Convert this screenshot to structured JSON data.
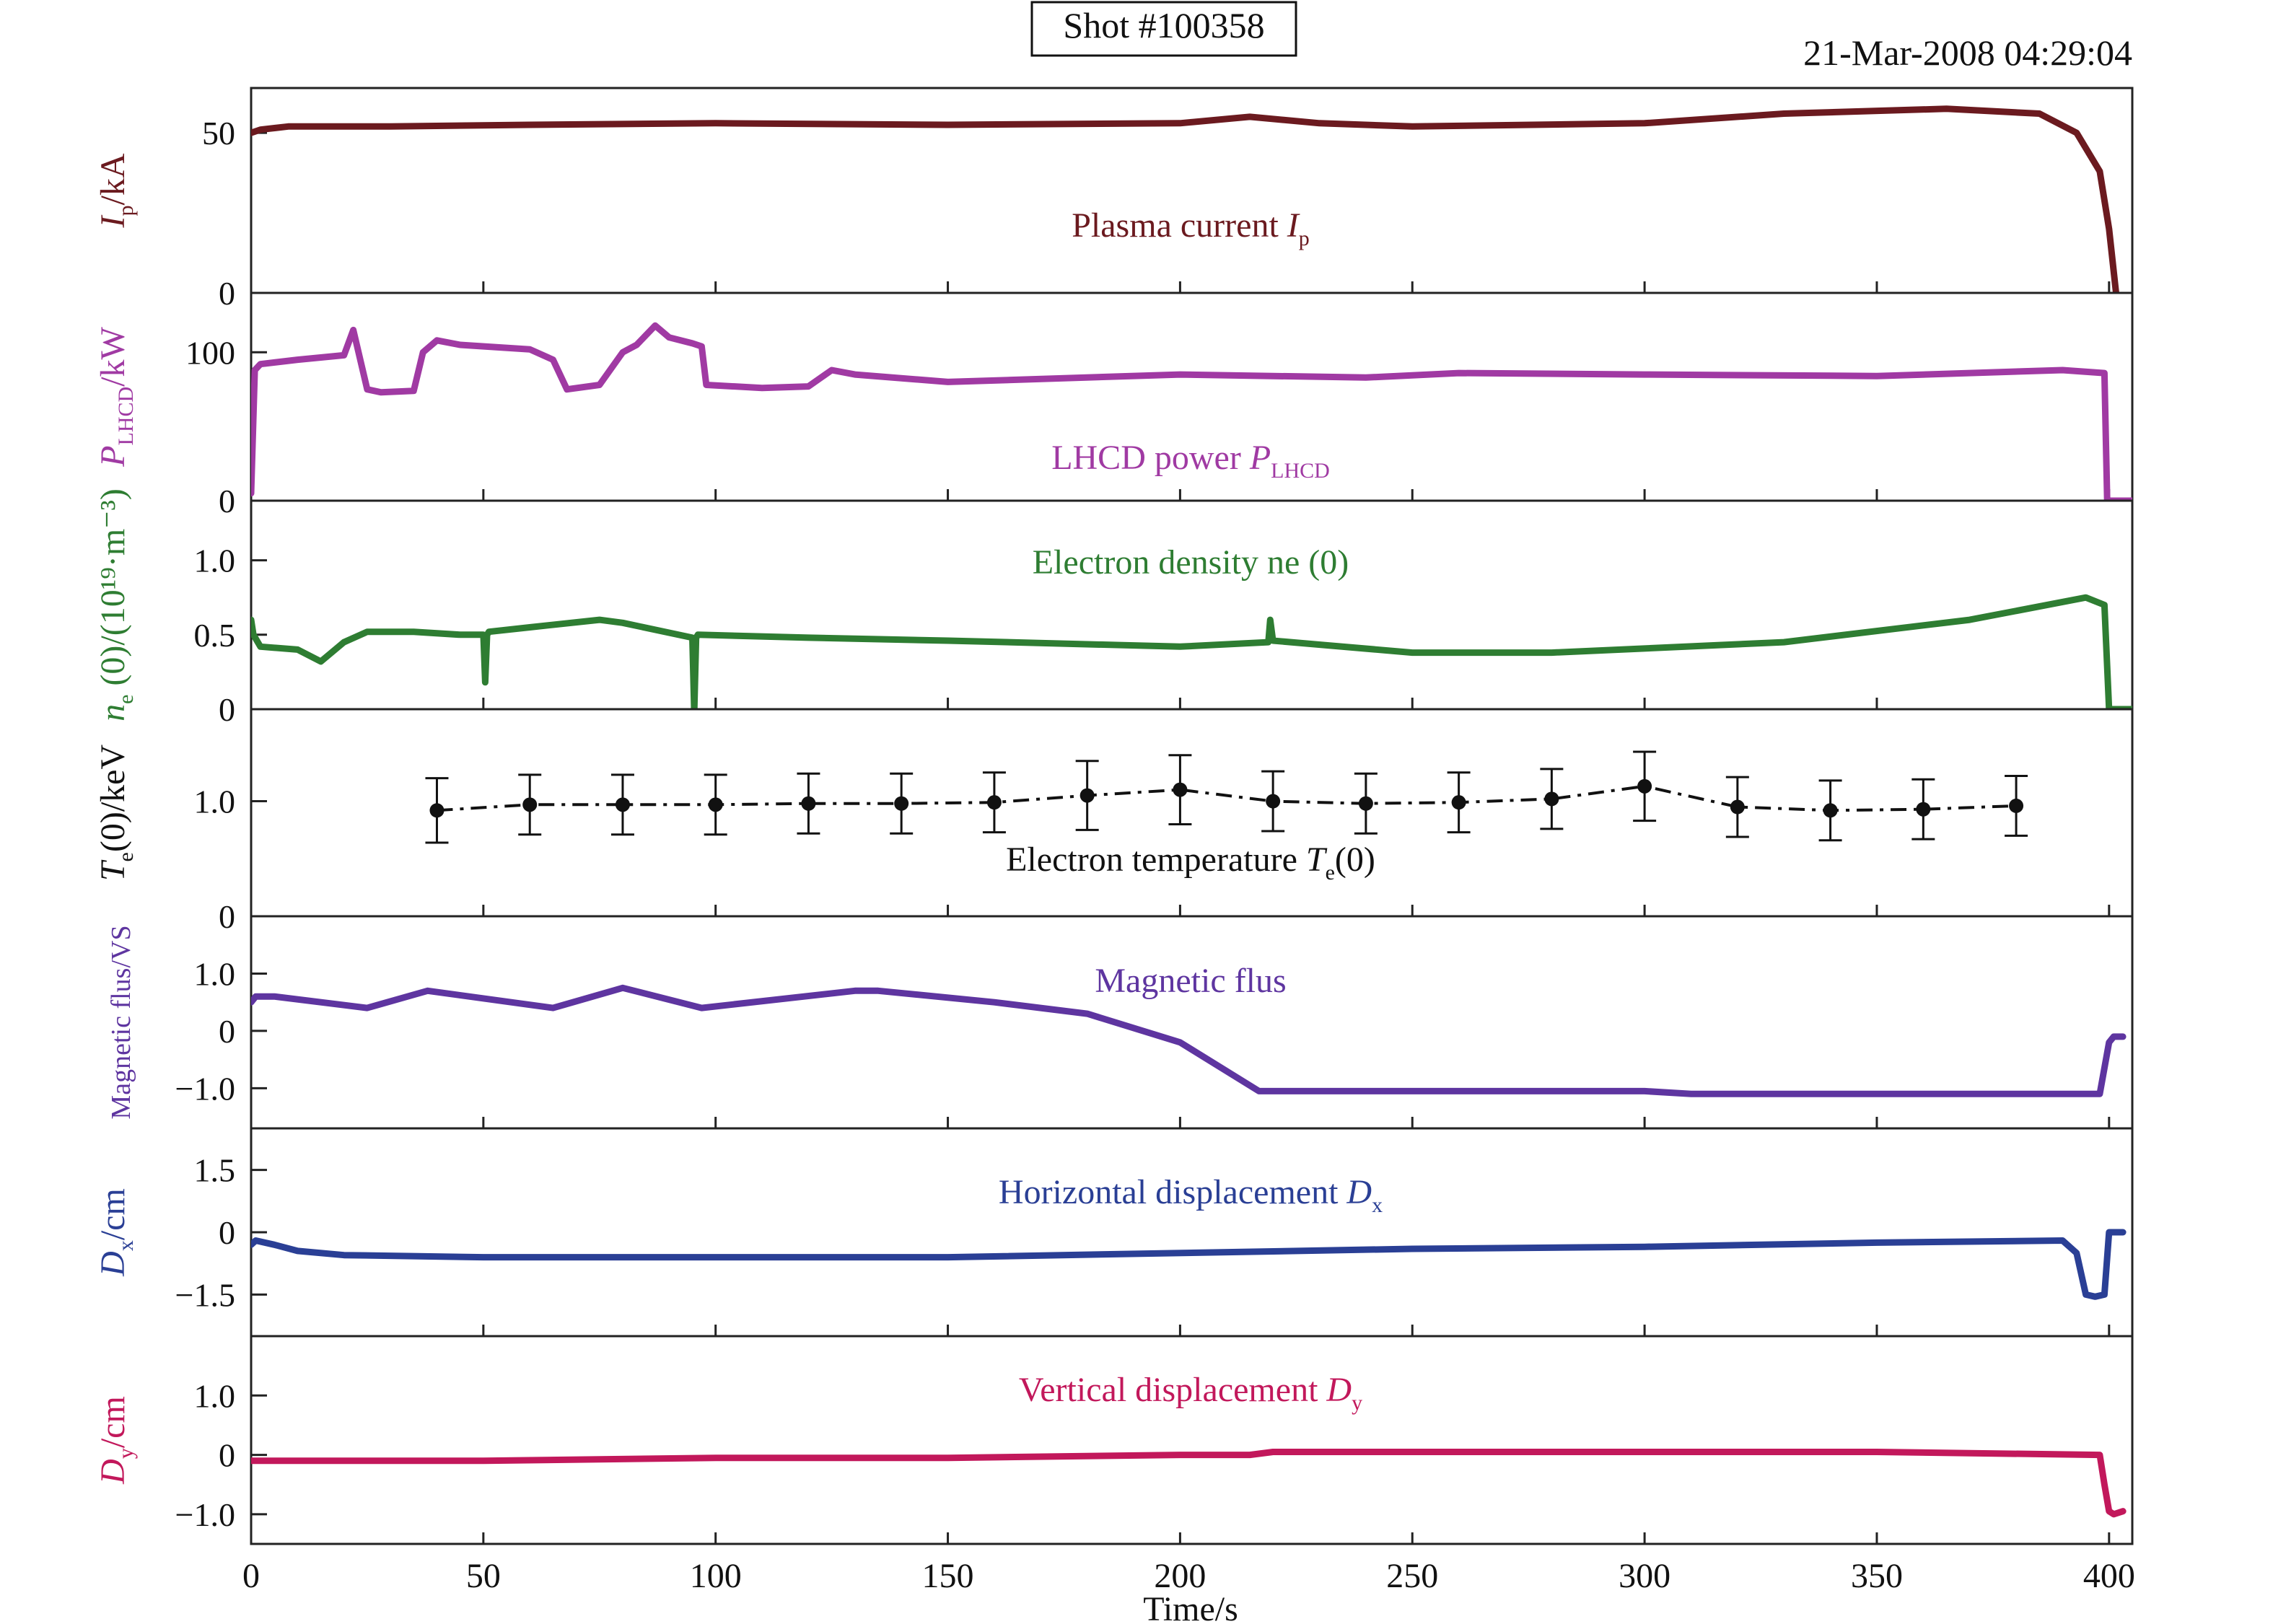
{
  "header": {
    "shot_label": "Shot #100358",
    "timestamp": "21-Mar-2008 04:29:04"
  },
  "x_axis": {
    "label": "Time/s",
    "range": [
      0,
      405
    ],
    "ticks": [
      0,
      50,
      100,
      150,
      200,
      250,
      300,
      350,
      400
    ]
  },
  "chart_data": [
    {
      "type": "line",
      "panel": "plasma-current",
      "title": "Plasma current I",
      "title_sub": "p",
      "ylabel": "I",
      "ylabel_sub": "p",
      "ylabel_suffix": "/kA",
      "color": "#6b1a1f",
      "ylim": [
        0,
        64
      ],
      "yticks": [
        {
          "v": 0,
          "label": "0"
        },
        {
          "v": 50,
          "label": "50"
        }
      ],
      "series": [
        {
          "x": [
            0,
            2,
            8,
            30,
            60,
            100,
            150,
            200,
            215,
            230,
            250,
            300,
            330,
            365,
            385,
            393,
            398,
            400,
            401.5
          ],
          "y": [
            50,
            51,
            52,
            52,
            52.5,
            53,
            52.5,
            53,
            55,
            53,
            52,
            53,
            56,
            57.5,
            56,
            50,
            38,
            20,
            0
          ]
        }
      ]
    },
    {
      "type": "line",
      "panel": "lhcd-power",
      "title": "LHCD power P",
      "title_sub": "LHCD",
      "ylabel": "P",
      "ylabel_sub": "LHCD",
      "ylabel_suffix": "/kW",
      "color": "#a03aa3",
      "ylim": [
        0,
        140
      ],
      "yticks": [
        {
          "v": 0,
          "label": "0"
        },
        {
          "v": 100,
          "label": "100"
        }
      ],
      "series": [
        {
          "x": [
            0,
            0.8,
            2,
            10,
            20,
            22,
            25,
            28,
            35,
            37,
            40,
            45,
            60,
            65,
            68,
            75,
            80,
            83,
            87,
            90,
            95,
            97,
            98,
            110,
            120,
            125,
            130,
            150,
            200,
            240,
            260,
            300,
            350,
            390,
            399,
            399.6,
            405
          ],
          "y": [
            5,
            88,
            92,
            95,
            98,
            115,
            75,
            73,
            74,
            100,
            108,
            105,
            102,
            95,
            75,
            78,
            100,
            105,
            118,
            110,
            106,
            104,
            78,
            76,
            77,
            88,
            85,
            80,
            85,
            83,
            86,
            85,
            84,
            88,
            86,
            0,
            0
          ]
        }
      ]
    },
    {
      "type": "line",
      "panel": "electron-density",
      "title": "Electron density ne (0)",
      "ylabel": "n",
      "ylabel_sub": "e",
      "ylabel_suffix": " (0)/(10¹⁹·m⁻³)",
      "color": "#2e7d32",
      "ylim": [
        0,
        1.4
      ],
      "yticks": [
        {
          "v": 0,
          "label": "0"
        },
        {
          "v": 0.5,
          "label": "0.5"
        },
        {
          "v": 1.0,
          "label": "1.0"
        }
      ],
      "series": [
        {
          "x": [
            0,
            0.5,
            2,
            10,
            15,
            20,
            25,
            35,
            45,
            50,
            50.4,
            50.8,
            51.2,
            60,
            75,
            80,
            95,
            95.4,
            95.8,
            96.2,
            120,
            150,
            200,
            219,
            219.4,
            220,
            250,
            280,
            330,
            370,
            395,
            399,
            400,
            405
          ],
          "y": [
            0.6,
            0.5,
            0.42,
            0.4,
            0.32,
            0.45,
            0.52,
            0.52,
            0.5,
            0.5,
            0.18,
            0.5,
            0.52,
            0.55,
            0.6,
            0.58,
            0.48,
            -0.02,
            0.48,
            0.5,
            0.48,
            0.46,
            0.42,
            0.45,
            0.6,
            0.46,
            0.38,
            0.38,
            0.45,
            0.6,
            0.75,
            0.7,
            0,
            0
          ]
        }
      ]
    },
    {
      "type": "scatter",
      "panel": "electron-temperature",
      "title": "Electron temperature T",
      "title_sub": "e",
      "title_suffix": "(0)",
      "ylabel": "T",
      "ylabel_sub": "e",
      "ylabel_suffix": "(0)/keV",
      "color": "#111111",
      "ylim": [
        0,
        1.8
      ],
      "yticks": [
        {
          "v": 0,
          "label": "0"
        },
        {
          "v": 1.0,
          "label": "1.0"
        }
      ],
      "series": [
        {
          "x": [
            40,
            60,
            80,
            100,
            120,
            140,
            160,
            180,
            200,
            220,
            240,
            260,
            280,
            300,
            320,
            340,
            360,
            380
          ],
          "y": [
            0.92,
            0.97,
            0.97,
            0.97,
            0.98,
            0.98,
            0.99,
            1.05,
            1.1,
            1.0,
            0.98,
            0.99,
            1.02,
            1.13,
            0.95,
            0.92,
            0.93,
            0.96
          ],
          "err": [
            0.28,
            0.26,
            0.26,
            0.26,
            0.26,
            0.26,
            0.26,
            0.3,
            0.3,
            0.26,
            0.26,
            0.26,
            0.26,
            0.3,
            0.26,
            0.26,
            0.26,
            0.26
          ]
        }
      ]
    },
    {
      "type": "line",
      "panel": "magnetic-flux",
      "title": "Magnetic flus",
      "ylabel": "Magnetic flus/VS",
      "color": "#5e35a0",
      "ylim": [
        -1.7,
        2.0
      ],
      "yticks": [
        {
          "v": -1.0,
          "label": "−1.0"
        },
        {
          "v": 0,
          "label": "0"
        },
        {
          "v": 1.0,
          "label": "1.0"
        }
      ],
      "series": [
        {
          "x": [
            0,
            1,
            5,
            25,
            38,
            65,
            80,
            97,
            130,
            135,
            160,
            180,
            200,
            217,
            250,
            300,
            310,
            350,
            398,
            400,
            401,
            403
          ],
          "y": [
            0.5,
            0.6,
            0.6,
            0.4,
            0.7,
            0.4,
            0.75,
            0.4,
            0.7,
            0.7,
            0.5,
            0.3,
            -0.2,
            -1.05,
            -1.05,
            -1.05,
            -1.1,
            -1.1,
            -1.1,
            -0.2,
            -0.1,
            -0.1
          ]
        }
      ]
    },
    {
      "type": "line",
      "panel": "horizontal-displacement",
      "title": "Horizontal displacement D",
      "title_sub": "x",
      "ylabel": "D",
      "ylabel_sub": "x",
      "ylabel_suffix": "/cm",
      "color": "#2a3f95",
      "ylim": [
        -2.5,
        2.5
      ],
      "yticks": [
        {
          "v": -1.5,
          "label": "−1.5"
        },
        {
          "v": 0,
          "label": "0"
        },
        {
          "v": 1.5,
          "label": "1.5"
        }
      ],
      "series": [
        {
          "x": [
            0,
            1,
            5,
            10,
            20,
            50,
            150,
            250,
            300,
            350,
            390,
            393,
            395,
            397,
            399,
            400,
            401,
            403
          ],
          "y": [
            -0.3,
            -0.2,
            -0.3,
            -0.45,
            -0.55,
            -0.6,
            -0.6,
            -0.4,
            -0.35,
            -0.25,
            -0.2,
            -0.5,
            -1.5,
            -1.55,
            -1.5,
            0,
            0,
            0
          ]
        }
      ]
    },
    {
      "type": "line",
      "panel": "vertical-displacement",
      "title": "Vertical displacement D",
      "title_sub": "y",
      "ylabel": "D",
      "ylabel_sub": "y",
      "ylabel_suffix": "/cm",
      "color": "#c2185b",
      "ylim": [
        -1.5,
        2.0
      ],
      "yticks": [
        {
          "v": -1.0,
          "label": "−1.0"
        },
        {
          "v": 0,
          "label": "0"
        },
        {
          "v": 1.0,
          "label": "1.0"
        }
      ],
      "series": [
        {
          "x": [
            0,
            50,
            100,
            150,
            200,
            215,
            220,
            300,
            350,
            398,
            399,
            400,
            401,
            403
          ],
          "y": [
            -0.1,
            -0.1,
            -0.05,
            -0.05,
            0,
            0,
            0.05,
            0.05,
            0.05,
            0,
            -0.5,
            -0.95,
            -1.0,
            -0.95
          ]
        }
      ]
    }
  ]
}
